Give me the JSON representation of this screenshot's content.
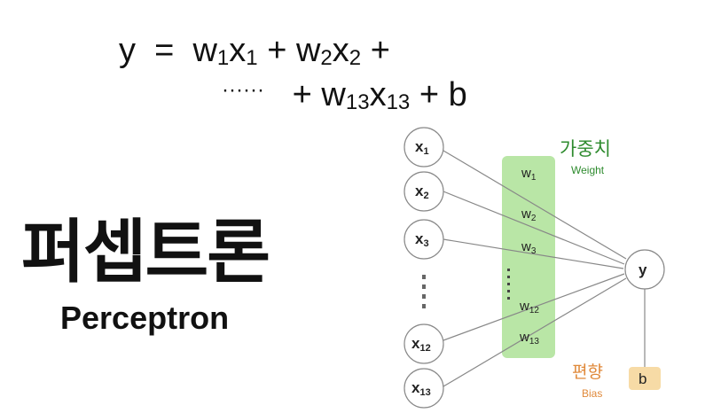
{
  "formula": {
    "line1": {
      "y": "y",
      "eq": "=",
      "w1": "w",
      "s1": "1",
      "x1": "x",
      "t1": "1",
      "plus1": "+",
      "w2": "w",
      "s2": "2",
      "x2": "x",
      "t2": "2",
      "plus2": "+"
    },
    "line2": {
      "dots": "······",
      "plus3": "+",
      "w13": "w",
      "s13": "13",
      "x13": "x",
      "t13": "13",
      "plus4": "+",
      "b": "b"
    }
  },
  "title_ko": "퍼셉트론",
  "title_en": "Perceptron",
  "diagram": {
    "inputs": [
      {
        "base": "x",
        "sub": "1"
      },
      {
        "base": "x",
        "sub": "2"
      },
      {
        "base": "x",
        "sub": "3"
      },
      {
        "base": "x",
        "sub": "12"
      },
      {
        "base": "x",
        "sub": "13"
      }
    ],
    "weights": [
      {
        "base": "w",
        "sub": "1"
      },
      {
        "base": "w",
        "sub": "2"
      },
      {
        "base": "w",
        "sub": "3"
      },
      {
        "base": "w",
        "sub": "12"
      },
      {
        "base": "w",
        "sub": "13"
      }
    ],
    "output": "y",
    "bias": "b",
    "weight_label_ko": "가중치",
    "weight_label_en": "Weight",
    "bias_label_ko": "편향",
    "bias_label_en": "Bias",
    "colors": {
      "weight_band": "#b9e6a6",
      "weight_text": "#2e8b2e",
      "bias_text": "#e0893a",
      "bias_box": "#f7dba6",
      "line": "#888888"
    }
  }
}
